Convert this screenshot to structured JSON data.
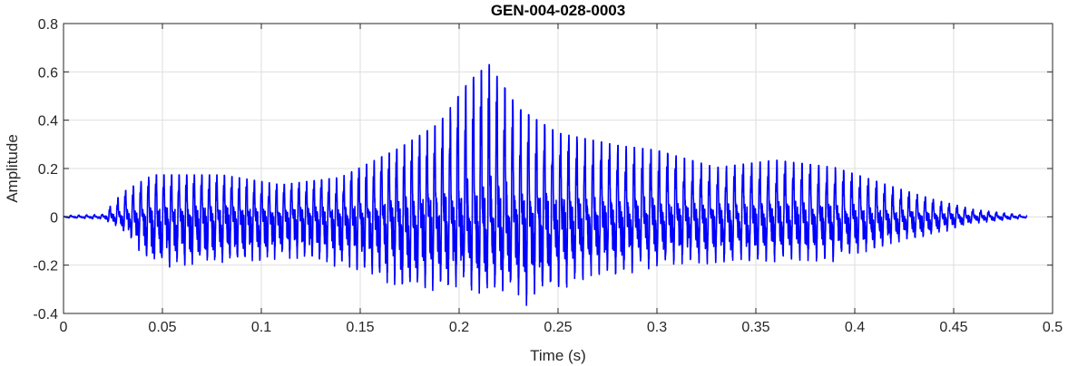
{
  "chart_data": {
    "type": "line",
    "title": "GEN-004-028-0003",
    "xlabel": "Time (s)",
    "ylabel": "Amplitude",
    "xlim": [
      0,
      0.5
    ],
    "ylim": [
      -0.4,
      0.8
    ],
    "xticks": [
      "0",
      "0.05",
      "0.1",
      "0.15",
      "0.2",
      "0.25",
      "0.3",
      "0.35",
      "0.4",
      "0.45",
      "0.5"
    ],
    "yticks": [
      "-0.4",
      "-0.2",
      "0",
      "0.2",
      "0.4",
      "0.6",
      "0.8"
    ],
    "grid": true,
    "series": [
      {
        "color": "#0000ff",
        "signal_end_s": 0.487,
        "voiced_pitch_hz": 250,
        "peak_envelope": [
          [
            0,
            0.005
          ],
          [
            0.02,
            0.01
          ],
          [
            0.03,
            0.1
          ],
          [
            0.045,
            0.17
          ],
          [
            0.08,
            0.17
          ],
          [
            0.11,
            0.13
          ],
          [
            0.14,
            0.16
          ],
          [
            0.15,
            0.2
          ],
          [
            0.17,
            0.28
          ],
          [
            0.19,
            0.38
          ],
          [
            0.205,
            0.55
          ],
          [
            0.215,
            0.62
          ],
          [
            0.23,
            0.44
          ],
          [
            0.25,
            0.34
          ],
          [
            0.28,
            0.29
          ],
          [
            0.3,
            0.27
          ],
          [
            0.33,
            0.2
          ],
          [
            0.36,
            0.23
          ],
          [
            0.39,
            0.2
          ],
          [
            0.42,
            0.12
          ],
          [
            0.44,
            0.07
          ],
          [
            0.46,
            0.03
          ],
          [
            0.487,
            0.005
          ]
        ],
        "trough_envelope": [
          [
            0,
            -0.005
          ],
          [
            0.02,
            -0.01
          ],
          [
            0.03,
            -0.06
          ],
          [
            0.045,
            -0.22
          ],
          [
            0.08,
            -0.22
          ],
          [
            0.12,
            -0.18
          ],
          [
            0.15,
            -0.24
          ],
          [
            0.17,
            -0.32
          ],
          [
            0.2,
            -0.32
          ],
          [
            0.22,
            -0.34
          ],
          [
            0.235,
            -0.38
          ],
          [
            0.25,
            -0.33
          ],
          [
            0.28,
            -0.25
          ],
          [
            0.3,
            -0.22
          ],
          [
            0.33,
            -0.2
          ],
          [
            0.36,
            -0.2
          ],
          [
            0.39,
            -0.19
          ],
          [
            0.42,
            -0.12
          ],
          [
            0.44,
            -0.08
          ],
          [
            0.46,
            -0.03
          ],
          [
            0.487,
            -0.005
          ]
        ]
      }
    ]
  }
}
